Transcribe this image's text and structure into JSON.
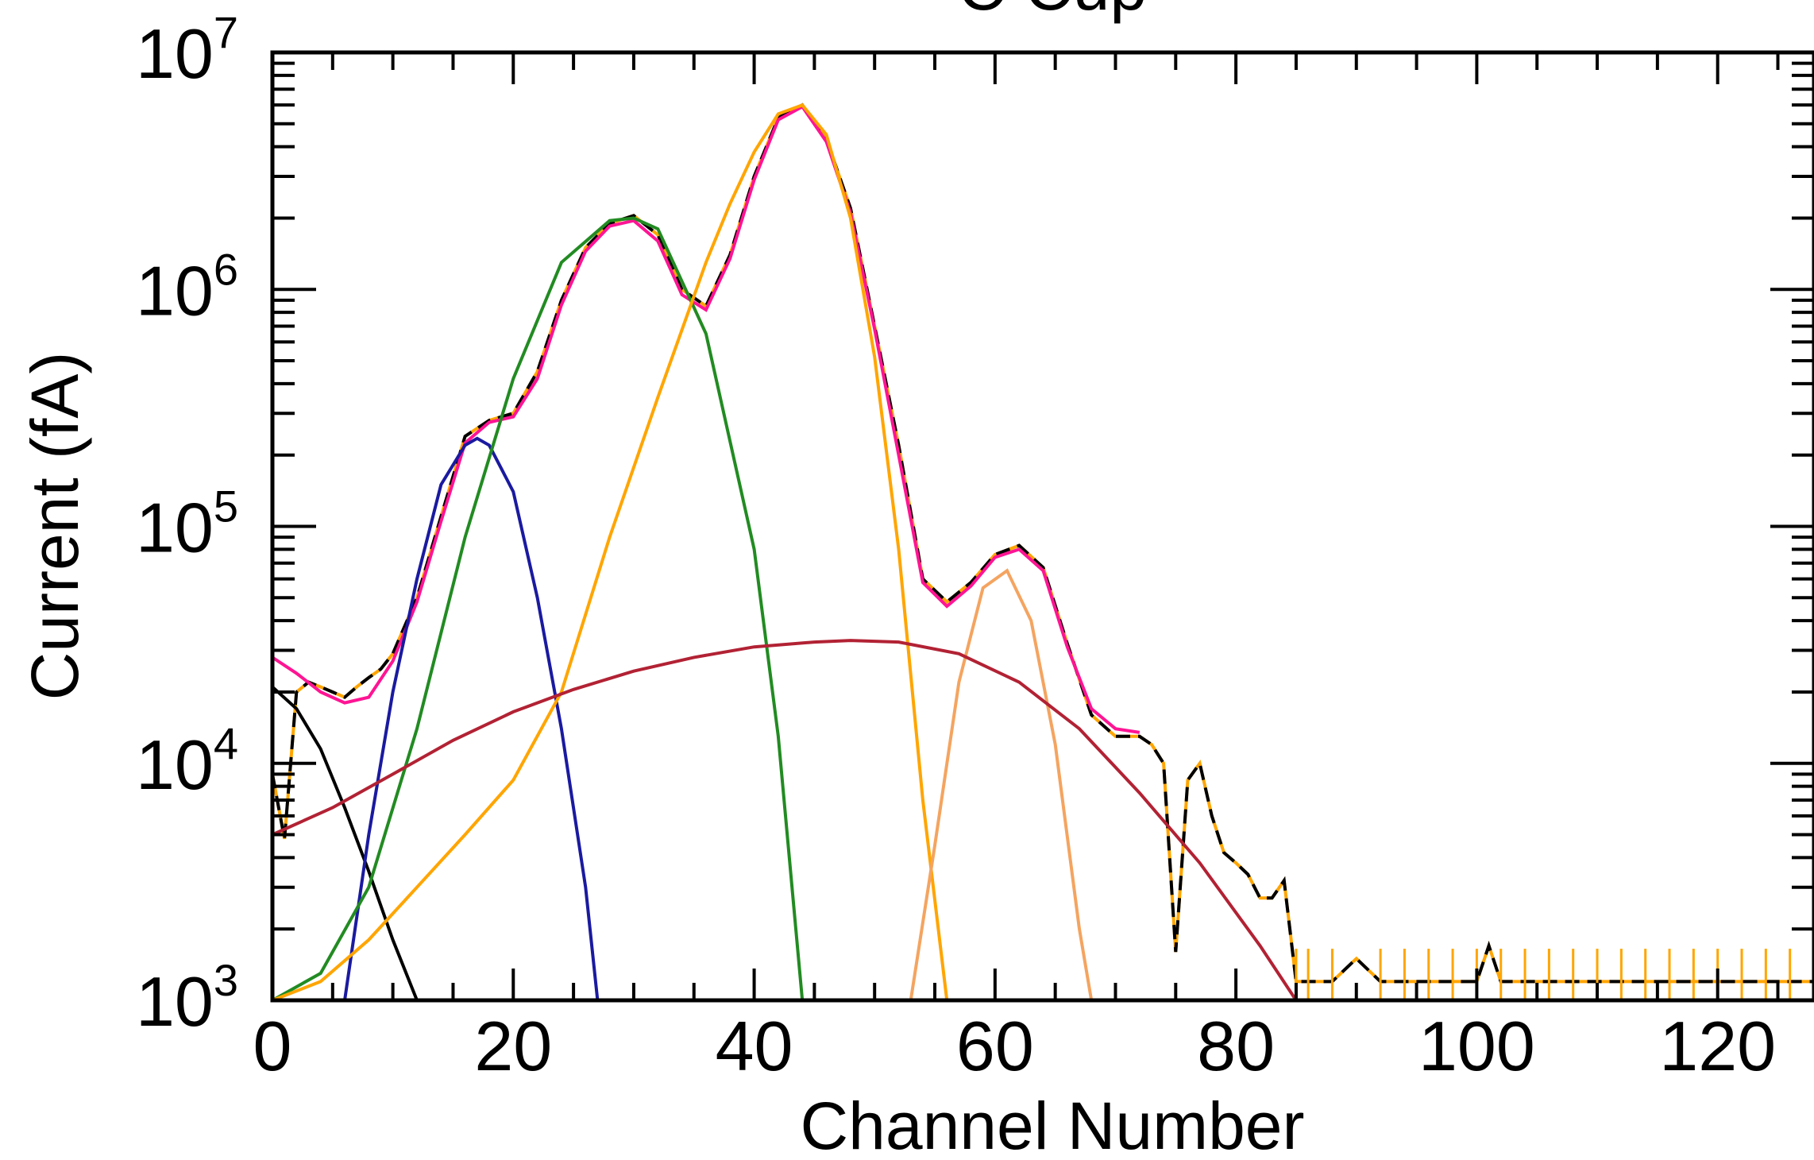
{
  "chart_data": {
    "type": "line",
    "title": "C Cup",
    "xlabel": "Channel Number",
    "ylabel": "Current (fA)",
    "xlim": [
      0,
      128
    ],
    "ylim": [
      1000,
      10000000
    ],
    "yscale": "log",
    "grid": false,
    "x_ticks": [
      0,
      20,
      40,
      60,
      80,
      100,
      120
    ],
    "x_tick_labels": [
      "0",
      "20",
      "40",
      "60",
      "80",
      "100",
      "120"
    ],
    "y_ticks": [
      1000,
      10000,
      100000,
      1000000,
      10000000
    ],
    "y_tick_labels": [
      {
        "base": "10",
        "exp": "3"
      },
      {
        "base": "10",
        "exp": "4"
      },
      {
        "base": "10",
        "exp": "5"
      },
      {
        "base": "10",
        "exp": "6"
      },
      {
        "base": "10",
        "exp": "7"
      }
    ],
    "series": [
      {
        "color": "#000000",
        "style": "dashed-measured",
        "x": [
          0,
          1,
          2,
          3,
          4,
          5,
          6,
          7,
          8,
          9,
          10,
          12,
          14,
          16,
          18,
          20,
          22,
          24,
          26,
          28,
          30,
          32,
          34,
          36,
          38,
          40,
          42,
          44,
          46,
          48,
          50,
          52,
          54,
          56,
          58,
          60,
          62,
          64,
          66,
          68,
          70,
          72,
          73,
          74,
          75,
          76,
          77,
          78,
          79,
          80,
          81,
          82,
          83,
          84,
          85,
          86,
          88,
          90,
          92,
          94,
          96,
          98,
          100,
          101,
          102,
          104,
          106,
          108,
          110,
          112,
          114,
          116,
          118,
          120,
          122,
          124,
          126,
          128
        ],
        "y": [
          9000,
          4800,
          20000,
          22000,
          21000,
          20000,
          19000,
          21000,
          23000,
          25000,
          29000,
          50000,
          110000,
          240000,
          280000,
          300000,
          450000,
          900000,
          1500000,
          1900000,
          2050000,
          1700000,
          1000000,
          850000,
          1400000,
          3000000,
          5300000,
          6000000,
          4300000,
          2200000,
          700000,
          220000,
          60000,
          48000,
          58000,
          76000,
          83000,
          67000,
          32000,
          16000,
          13000,
          13000,
          12000,
          10000,
          1600,
          8500,
          10000,
          6000,
          4200,
          3800,
          3400,
          2700,
          2700,
          3200,
          1200,
          1200,
          1200,
          1500,
          1200,
          1200,
          1200,
          1200,
          1200,
          1700,
          1200,
          1200,
          1200,
          1200,
          1200,
          1200,
          1200,
          1200,
          1200,
          1200,
          1200,
          1200,
          1200,
          1200
        ]
      },
      {
        "color": "#ff1493",
        "style": "solid",
        "x": [
          0,
          2,
          4,
          6,
          8,
          10,
          12,
          14,
          16,
          18,
          20,
          22,
          24,
          26,
          28,
          30,
          32,
          34,
          36,
          38,
          40,
          42,
          44,
          46,
          48,
          50,
          52,
          54,
          56,
          58,
          60,
          62,
          64,
          66,
          68,
          70,
          72
        ],
        "y": [
          28000,
          24000,
          20000,
          18000,
          19000,
          27000,
          48000,
          105000,
          225000,
          275000,
          290000,
          420000,
          860000,
          1450000,
          1850000,
          1950000,
          1600000,
          950000,
          820000,
          1350000,
          2900000,
          5200000,
          5900000,
          4200000,
          2100000,
          680000,
          200000,
          58000,
          46000,
          56000,
          74000,
          80000,
          65000,
          31000,
          17000,
          14000,
          13500
        ]
      },
      {
        "color": "#000000",
        "style": "solid",
        "x": [
          0,
          2,
          4,
          6,
          8,
          10,
          12
        ],
        "y": [
          21000,
          17000,
          11500,
          6500,
          3500,
          1800,
          1000
        ]
      },
      {
        "color": "#1a1aa0",
        "style": "solid",
        "x": [
          6,
          8,
          10,
          12,
          14,
          16,
          17,
          18,
          20,
          22,
          24,
          26,
          27
        ],
        "y": [
          1000,
          5000,
          20000,
          60000,
          150000,
          220000,
          235000,
          220000,
          140000,
          50000,
          14000,
          3000,
          1000
        ]
      },
      {
        "color": "#228b22",
        "style": "solid",
        "x": [
          0,
          4,
          8,
          12,
          16,
          20,
          24,
          28,
          30,
          32,
          36,
          40,
          42,
          44
        ],
        "y": [
          1000,
          1300,
          3000,
          14000,
          90000,
          420000,
          1300000,
          1950000,
          2000000,
          1800000,
          650000,
          80000,
          13000,
          1000
        ]
      },
      {
        "color": "#ffa500",
        "style": "solid",
        "x": [
          0,
          4,
          8,
          12,
          16,
          20,
          24,
          28,
          32,
          36,
          38,
          40,
          42,
          44,
          46,
          48,
          50,
          52,
          54,
          56
        ],
        "y": [
          1000,
          1200,
          1800,
          3000,
          5000,
          8500,
          20000,
          90000,
          350000,
          1300000,
          2300000,
          3800000,
          5500000,
          6000000,
          4500000,
          2000000,
          520000,
          80000,
          7000,
          1000
        ]
      },
      {
        "color": "#f4a460",
        "style": "solid",
        "x": [
          53,
          55,
          57,
          59,
          61,
          63,
          65,
          67,
          68
        ],
        "y": [
          1000,
          4500,
          22000,
          55000,
          65000,
          40000,
          12000,
          2000,
          1000
        ]
      },
      {
        "color": "#b22234",
        "style": "solid",
        "x": [
          0,
          5,
          10,
          15,
          20,
          25,
          30,
          35,
          40,
          45,
          48,
          52,
          57,
          62,
          67,
          72,
          77,
          82,
          85
        ],
        "y": [
          5000,
          6500,
          9000,
          12500,
          16500,
          20500,
          24500,
          28000,
          31000,
          32500,
          33000,
          32500,
          29000,
          22000,
          14000,
          7500,
          3800,
          1700,
          1000
        ]
      }
    ]
  }
}
